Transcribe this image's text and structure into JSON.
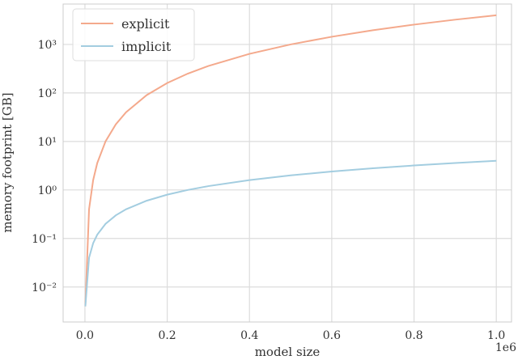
{
  "chart_data": {
    "type": "line",
    "x_label": "model size",
    "y_label": "memory footprint [GB]",
    "x_offset_label": "1e6",
    "x": [
      1000,
      10000,
      20000,
      30000,
      50000,
      75000,
      100000,
      150000,
      200000,
      250000,
      300000,
      400000,
      500000,
      600000,
      700000,
      800000,
      900000,
      1000000
    ],
    "series": [
      {
        "name": "explicit",
        "color": "#f4a98c",
        "values": [
          0.004,
          0.4,
          1.6,
          3.6,
          10,
          22.5,
          40,
          90,
          160,
          250,
          360,
          640,
          1000,
          1440,
          1960,
          2560,
          3240,
          4000
        ]
      },
      {
        "name": "implicit",
        "color": "#a3cde0",
        "values": [
          0.004,
          0.04,
          0.08,
          0.12,
          0.2,
          0.3,
          0.4,
          0.6,
          0.8,
          1,
          1.2,
          1.6,
          2,
          2.4,
          2.8,
          3.2,
          3.6,
          4
        ]
      }
    ],
    "xlim": [
      -53000,
      1037000
    ],
    "ylim": [
      0.0019,
      6800
    ],
    "y_scale": "log",
    "xticks": [
      {
        "value": 0,
        "label": "0.0"
      },
      {
        "value": 200000,
        "label": "0.2"
      },
      {
        "value": 400000,
        "label": "0.4"
      },
      {
        "value": 600000,
        "label": "0.6"
      },
      {
        "value": 800000,
        "label": "0.8"
      },
      {
        "value": 1000000,
        "label": "1.0"
      }
    ],
    "yticks": [
      {
        "value": 0.01,
        "label": "10⁻²"
      },
      {
        "value": 0.1,
        "label": "10⁻¹"
      },
      {
        "value": 1,
        "label": "10⁰"
      },
      {
        "value": 10,
        "label": "10¹"
      },
      {
        "value": 100,
        "label": "10²"
      },
      {
        "value": 1000,
        "label": "10³"
      }
    ],
    "grid": true,
    "legend": "upper left"
  }
}
